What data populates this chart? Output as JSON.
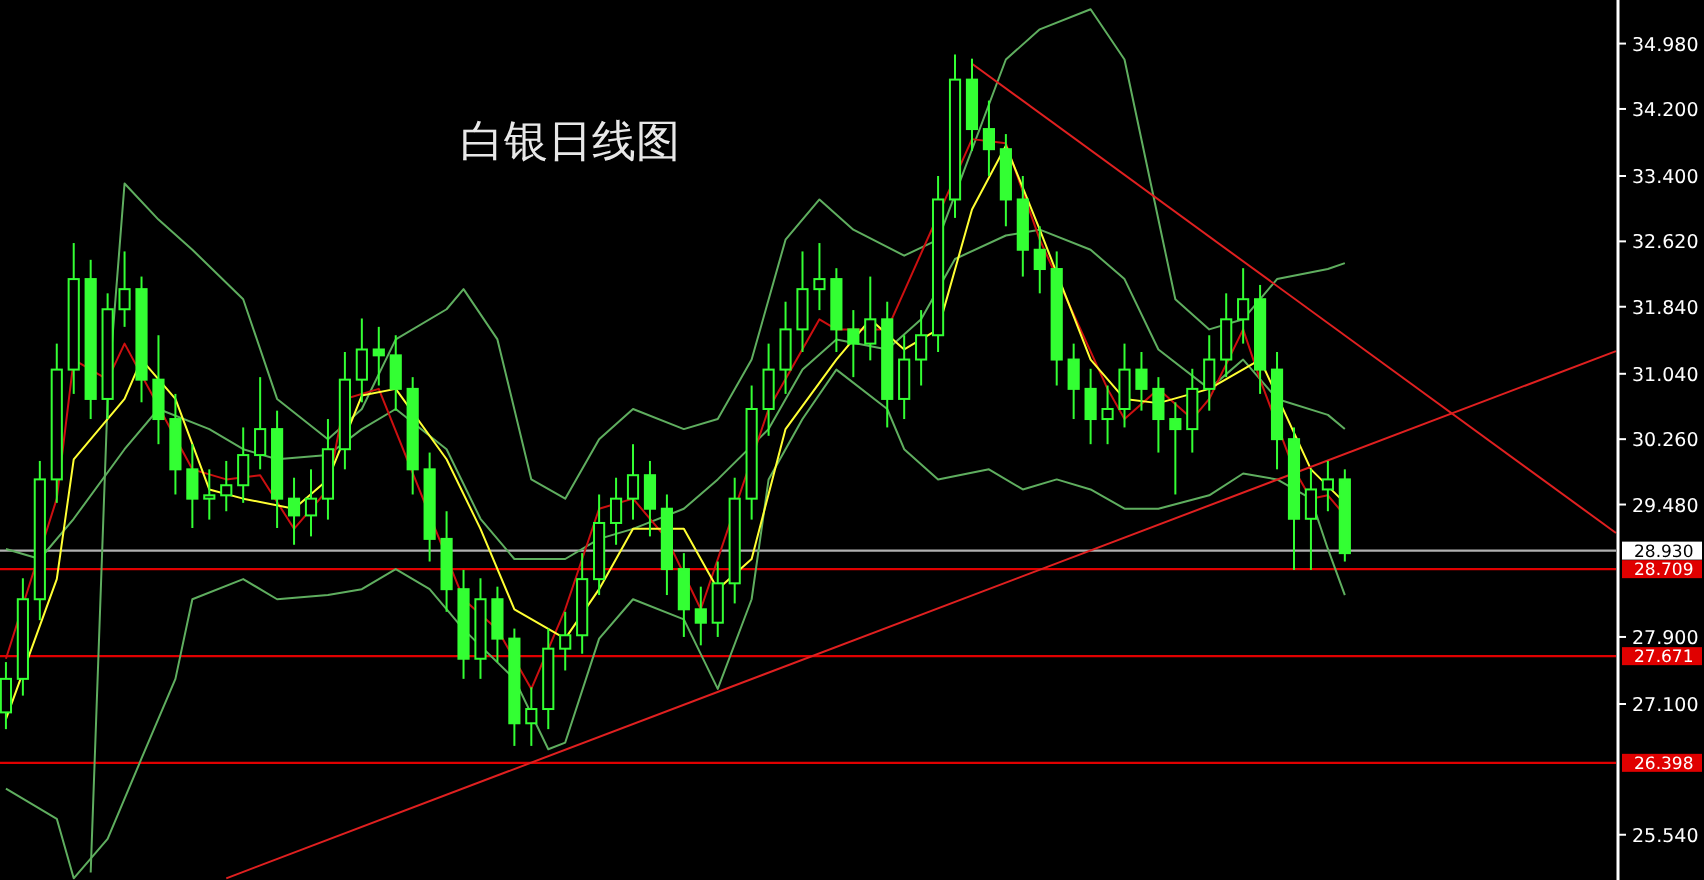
{
  "chart_data": {
    "type": "candlestick",
    "title": "白银日线图",
    "color": "#33ff33",
    "categories": [
      null,
      null,
      null,
      null,
      null,
      null,
      null,
      null,
      null,
      null,
      null,
      null,
      null,
      null,
      null,
      null,
      null,
      null,
      null,
      null,
      null,
      null,
      null,
      null,
      null,
      null,
      null,
      null,
      null,
      null,
      null,
      null,
      null,
      null,
      null,
      null,
      null,
      null,
      null,
      null,
      null,
      null,
      null,
      null,
      null,
      null,
      null,
      null,
      null,
      null,
      null,
      null,
      null,
      null,
      null,
      null,
      null,
      null,
      null,
      null,
      null,
      null,
      null,
      null,
      null,
      null,
      null,
      null,
      null,
      null,
      null,
      null,
      null,
      null,
      null,
      null,
      null,
      null,
      null,
      null,
      null,
      null,
      null,
      null,
      null,
      null,
      null,
      null,
      null,
      null,
      null,
      null,
      null,
      null,
      null,
      null
    ],
    "ohlc": [
      [
        27.0,
        27.6,
        26.8,
        27.4
      ],
      [
        27.4,
        28.6,
        27.2,
        28.35
      ],
      [
        28.35,
        30.0,
        28.1,
        29.78
      ],
      [
        29.78,
        31.4,
        29.5,
        31.09
      ],
      [
        31.09,
        32.6,
        30.8,
        32.17
      ],
      [
        32.17,
        32.4,
        30.5,
        30.74
      ],
      [
        30.74,
        32.0,
        30.5,
        31.81
      ],
      [
        31.81,
        32.5,
        31.6,
        32.05
      ],
      [
        32.05,
        32.2,
        30.7,
        30.97
      ],
      [
        30.97,
        31.5,
        30.2,
        30.5
      ],
      [
        30.5,
        30.8,
        29.6,
        29.9
      ],
      [
        29.9,
        30.2,
        29.2,
        29.55
      ],
      [
        29.55,
        29.9,
        29.3,
        29.59
      ],
      [
        29.59,
        30.0,
        29.4,
        29.71
      ],
      [
        29.71,
        30.4,
        29.5,
        30.07
      ],
      [
        30.07,
        31.0,
        29.9,
        30.38
      ],
      [
        30.38,
        30.6,
        29.2,
        29.55
      ],
      [
        29.55,
        29.8,
        29.0,
        29.35
      ],
      [
        29.35,
        29.9,
        29.1,
        29.55
      ],
      [
        29.55,
        30.5,
        29.3,
        30.14
      ],
      [
        30.14,
        31.3,
        29.9,
        30.97
      ],
      [
        30.97,
        31.7,
        30.7,
        31.33
      ],
      [
        31.33,
        31.6,
        30.9,
        31.26
      ],
      [
        31.26,
        31.5,
        30.6,
        30.86
      ],
      [
        30.86,
        31.0,
        29.6,
        29.9
      ],
      [
        29.9,
        30.1,
        28.8,
        29.07
      ],
      [
        29.07,
        29.4,
        28.2,
        28.47
      ],
      [
        28.47,
        28.7,
        27.4,
        27.64
      ],
      [
        27.64,
        28.6,
        27.4,
        28.35
      ],
      [
        28.35,
        28.5,
        27.6,
        27.88
      ],
      [
        27.88,
        28.0,
        26.6,
        26.87
      ],
      [
        26.87,
        27.3,
        26.6,
        27.04
      ],
      [
        27.04,
        28.0,
        26.8,
        27.76
      ],
      [
        27.76,
        28.2,
        27.5,
        27.92
      ],
      [
        27.92,
        28.9,
        27.7,
        28.59
      ],
      [
        28.59,
        29.6,
        28.4,
        29.26
      ],
      [
        29.26,
        29.8,
        29.0,
        29.55
      ],
      [
        29.55,
        30.2,
        29.3,
        29.83
      ],
      [
        29.83,
        30.0,
        29.1,
        29.43
      ],
      [
        29.43,
        29.6,
        28.4,
        28.71
      ],
      [
        28.71,
        28.9,
        27.9,
        28.23
      ],
      [
        28.23,
        28.5,
        27.8,
        28.07
      ],
      [
        28.07,
        28.8,
        27.9,
        28.54
      ],
      [
        28.54,
        29.8,
        28.3,
        29.55
      ],
      [
        29.55,
        30.9,
        29.3,
        30.62
      ],
      [
        30.62,
        31.4,
        30.3,
        31.09
      ],
      [
        31.09,
        31.9,
        30.8,
        31.57
      ],
      [
        31.57,
        32.5,
        31.3,
        32.05
      ],
      [
        32.05,
        32.6,
        31.8,
        32.17
      ],
      [
        32.17,
        32.3,
        31.3,
        31.57
      ],
      [
        31.57,
        31.8,
        31.0,
        31.4
      ],
      [
        31.4,
        32.2,
        31.2,
        31.69
      ],
      [
        31.69,
        31.9,
        30.4,
        30.74
      ],
      [
        30.74,
        31.5,
        30.5,
        31.21
      ],
      [
        31.21,
        31.8,
        30.9,
        31.5
      ],
      [
        31.5,
        33.4,
        31.3,
        33.12
      ],
      [
        33.12,
        34.85,
        32.9,
        34.55
      ],
      [
        34.55,
        34.8,
        33.7,
        33.96
      ],
      [
        33.96,
        34.3,
        33.4,
        33.72
      ],
      [
        33.72,
        33.9,
        32.8,
        33.12
      ],
      [
        33.12,
        33.4,
        32.2,
        32.52
      ],
      [
        32.52,
        32.8,
        32.0,
        32.29
      ],
      [
        32.29,
        32.5,
        30.9,
        31.21
      ],
      [
        31.21,
        31.4,
        30.5,
        30.86
      ],
      [
        30.86,
        31.1,
        30.2,
        30.5
      ],
      [
        30.5,
        30.9,
        30.2,
        30.62
      ],
      [
        30.62,
        31.4,
        30.4,
        31.09
      ],
      [
        31.09,
        31.3,
        30.6,
        30.86
      ],
      [
        30.86,
        31.0,
        30.1,
        30.5
      ],
      [
        30.5,
        30.7,
        29.6,
        30.38
      ],
      [
        30.38,
        31.1,
        30.1,
        30.86
      ],
      [
        30.86,
        31.5,
        30.6,
        31.21
      ],
      [
        31.21,
        32.0,
        31.0,
        31.69
      ],
      [
        31.69,
        32.3,
        31.4,
        31.93
      ],
      [
        31.93,
        32.1,
        30.8,
        31.09
      ],
      [
        31.09,
        31.3,
        29.9,
        30.26
      ],
      [
        30.26,
        30.4,
        28.7,
        29.31
      ],
      [
        29.31,
        29.9,
        28.7,
        29.66
      ],
      [
        29.66,
        30.0,
        29.4,
        29.78
      ],
      [
        29.78,
        29.9,
        28.8,
        28.9
      ],
      null,
      null,
      null,
      null,
      null,
      null,
      null,
      null,
      null,
      null,
      null,
      null,
      null,
      null,
      null,
      null
    ],
    "series": [
      {
        "type": "line",
        "color": "#5fae5f",
        "values": [
          null,
          null,
          null,
          null,
          null,
          25.09,
          30.74,
          33.31,
          null,
          32.88,
          null,
          32.52,
          null,
          null,
          31.93,
          null,
          30.74,
          null,
          null,
          30.26,
          null,
          30.62,
          null,
          31.45,
          null,
          null,
          31.81,
          32.05,
          null,
          31.45,
          null,
          29.78,
          null,
          29.55,
          null,
          30.26,
          null,
          30.62,
          null,
          null,
          30.38,
          null,
          30.5,
          null,
          31.21,
          null,
          32.64,
          null,
          33.12,
          null,
          32.76,
          null,
          null,
          32.45,
          null,
          32.64,
          null,
          null,
          null,
          34.79,
          null,
          35.15,
          null,
          null,
          35.39,
          null,
          34.79,
          null,
          32.88,
          31.93,
          null,
          31.57,
          null,
          31.69,
          null,
          32.17,
          null,
          null,
          32.29,
          32.36,
          null,
          null,
          null,
          null,
          null,
          null,
          null,
          null,
          null,
          null,
          null,
          null,
          null,
          null,
          null,
          null
        ]
      },
      {
        "type": "line",
        "color": "#5fae5f",
        "values": [
          28.95,
          null,
          28.83,
          null,
          29.31,
          null,
          null,
          30.14,
          null,
          30.62,
          null,
          null,
          30.38,
          null,
          30.14,
          null,
          30.02,
          null,
          null,
          30.07,
          null,
          30.38,
          null,
          30.62,
          null,
          null,
          30.14,
          null,
          29.31,
          null,
          28.83,
          null,
          null,
          28.83,
          null,
          29.07,
          null,
          29.19,
          null,
          null,
          29.43,
          null,
          29.78,
          null,
          null,
          30.38,
          null,
          31.09,
          null,
          31.45,
          null,
          null,
          31.33,
          null,
          31.69,
          null,
          32.41,
          null,
          null,
          32.69,
          null,
          32.76,
          null,
          null,
          32.52,
          null,
          32.17,
          null,
          31.33,
          null,
          null,
          30.86,
          null,
          31.21,
          null,
          30.74,
          null,
          null,
          30.55,
          30.38,
          null,
          null,
          null,
          null,
          null,
          null,
          null,
          null,
          null,
          null,
          null,
          null,
          null,
          null,
          null,
          null
        ]
      },
      {
        "type": "line",
        "color": "#5fae5f",
        "values": [
          26.09,
          null,
          null,
          25.73,
          25.02,
          null,
          25.49,
          null,
          26.45,
          null,
          27.4,
          28.35,
          null,
          null,
          28.59,
          null,
          28.35,
          null,
          null,
          28.4,
          null,
          28.47,
          null,
          28.71,
          null,
          28.47,
          null,
          27.99,
          null,
          null,
          27.4,
          null,
          26.56,
          26.64,
          null,
          27.88,
          null,
          28.35,
          null,
          null,
          28.11,
          null,
          27.28,
          null,
          28.35,
          29.78,
          null,
          30.5,
          null,
          31.09,
          null,
          null,
          30.62,
          30.14,
          null,
          29.78,
          null,
          null,
          29.9,
          null,
          29.66,
          null,
          29.78,
          null,
          29.66,
          null,
          29.43,
          null,
          29.43,
          null,
          null,
          29.59,
          null,
          29.85,
          null,
          29.78,
          null,
          29.55,
          28.95,
          28.4,
          null,
          null,
          null,
          null,
          null,
          null,
          null,
          null,
          null,
          null,
          null,
          null,
          null,
          null,
          null,
          null
        ]
      },
      {
        "type": "line",
        "color": "#cc1010",
        "values": [
          27.64,
          null,
          null,
          29.55,
          31.21,
          null,
          30.97,
          31.4,
          null,
          null,
          null,
          29.9,
          null,
          29.78,
          null,
          29.83,
          null,
          29.19,
          null,
          29.66,
          30.74,
          null,
          30.86,
          null,
          null,
          null,
          null,
          28.35,
          null,
          27.99,
          null,
          27.28,
          null,
          28.23,
          null,
          29.43,
          null,
          29.55,
          null,
          29.07,
          null,
          28.23,
          null,
          null,
          null,
          30.62,
          null,
          null,
          31.69,
          31.57,
          null,
          null,
          31.57,
          null,
          null,
          null,
          null,
          33.84,
          null,
          33.79,
          null,
          32.64,
          null,
          null,
          null,
          30.86,
          30.5,
          null,
          30.86,
          null,
          30.5,
          30.74,
          null,
          31.57,
          30.97,
          null,
          29.9,
          29.55,
          29.59,
          29.35,
          null,
          null,
          null,
          null,
          null,
          null,
          null,
          null,
          null,
          null,
          null,
          null,
          null,
          null,
          null,
          null
        ]
      },
      {
        "type": "line",
        "color": "#ffff33",
        "values": [
          26.92,
          null,
          null,
          28.59,
          30.02,
          null,
          null,
          30.74,
          31.21,
          null,
          30.74,
          null,
          29.66,
          null,
          29.55,
          null,
          null,
          29.43,
          null,
          29.78,
          null,
          30.78,
          null,
          30.86,
          null,
          null,
          30.02,
          null,
          29.19,
          null,
          28.23,
          null,
          null,
          27.88,
          null,
          28.47,
          null,
          29.19,
          null,
          null,
          29.19,
          null,
          28.47,
          null,
          28.83,
          null,
          30.38,
          null,
          null,
          31.21,
          null,
          31.69,
          null,
          31.33,
          null,
          31.57,
          null,
          33.0,
          null,
          33.76,
          null,
          32.76,
          null,
          null,
          31.21,
          null,
          30.74,
          null,
          30.69,
          null,
          null,
          30.86,
          null,
          null,
          31.21,
          null,
          null,
          29.9,
          null,
          29.5,
          null,
          null,
          null,
          null,
          null,
          null,
          null,
          null,
          null,
          null,
          null,
          null,
          null,
          null,
          null,
          null
        ]
      },
      {
        "type": "line",
        "color": "#e02020",
        "values": [
          null,
          null,
          null,
          null,
          null,
          null,
          null,
          null,
          null,
          null,
          null,
          null,
          null,
          25.02,
          null,
          null,
          null,
          null,
          null,
          null,
          null,
          null,
          null,
          null,
          null,
          null,
          null,
          null,
          null,
          null,
          null,
          null,
          null,
          null,
          null,
          null,
          null,
          null,
          null,
          null,
          null,
          null,
          null,
          null,
          null,
          null,
          null,
          null,
          null,
          null,
          null,
          null,
          null,
          null,
          null,
          null,
          null,
          null,
          null,
          null,
          null,
          null,
          null,
          null,
          null,
          null,
          null,
          null,
          null,
          null,
          null,
          null,
          null,
          null,
          null,
          null,
          null,
          null,
          null,
          null,
          null,
          null,
          null,
          null,
          null,
          null,
          null,
          null,
          null,
          null,
          null,
          null,
          null,
          null,
          null,
          31.31
        ]
      },
      {
        "type": "line",
        "color": "#e02020",
        "values": [
          null,
          null,
          null,
          null,
          null,
          null,
          null,
          null,
          null,
          null,
          null,
          null,
          null,
          null,
          null,
          null,
          null,
          null,
          null,
          null,
          null,
          null,
          null,
          null,
          null,
          null,
          null,
          null,
          null,
          null,
          null,
          null,
          null,
          null,
          null,
          null,
          null,
          null,
          null,
          null,
          null,
          null,
          null,
          null,
          null,
          null,
          null,
          null,
          null,
          null,
          null,
          null,
          null,
          null,
          null,
          null,
          null,
          34.74,
          null,
          null,
          null,
          null,
          null,
          null,
          null,
          null,
          null,
          null,
          null,
          null,
          null,
          null,
          null,
          null,
          null,
          null,
          null,
          null,
          null,
          null,
          null,
          null,
          null,
          null,
          null,
          null,
          null,
          null,
          null,
          null,
          null,
          null,
          null,
          null,
          null,
          29.14
        ]
      }
    ],
    "ylim": [
      25.0,
      35.5
    ],
    "yticks": [
      {
        "value": 25.54,
        "label": "25.540"
      },
      {
        "value": 27.1,
        "label": "27.100"
      },
      {
        "value": 27.9,
        "label": "27.900"
      },
      {
        "value": 29.48,
        "label": "29.480"
      },
      {
        "value": 30.26,
        "label": "30.260"
      },
      {
        "value": 31.04,
        "label": "31.040"
      },
      {
        "value": 31.84,
        "label": "31.840"
      },
      {
        "value": 32.62,
        "label": "32.620"
      },
      {
        "value": 33.4,
        "label": "33.400"
      },
      {
        "value": 34.2,
        "label": "34.200"
      },
      {
        "value": 34.98,
        "label": "34.980"
      }
    ],
    "ref_lines": [
      {
        "axis": "y",
        "value": 28.93,
        "label": "28.930",
        "color": "#b0b0b0"
      },
      {
        "axis": "y",
        "value": 28.709,
        "label": "28.709",
        "color": "#e00000"
      },
      {
        "axis": "y",
        "value": 27.671,
        "label": "27.671",
        "color": "#e00000"
      },
      {
        "axis": "y",
        "value": 26.398,
        "label": "26.398",
        "color": "#e00000"
      }
    ],
    "tick_labels": "y",
    "grid": false
  }
}
